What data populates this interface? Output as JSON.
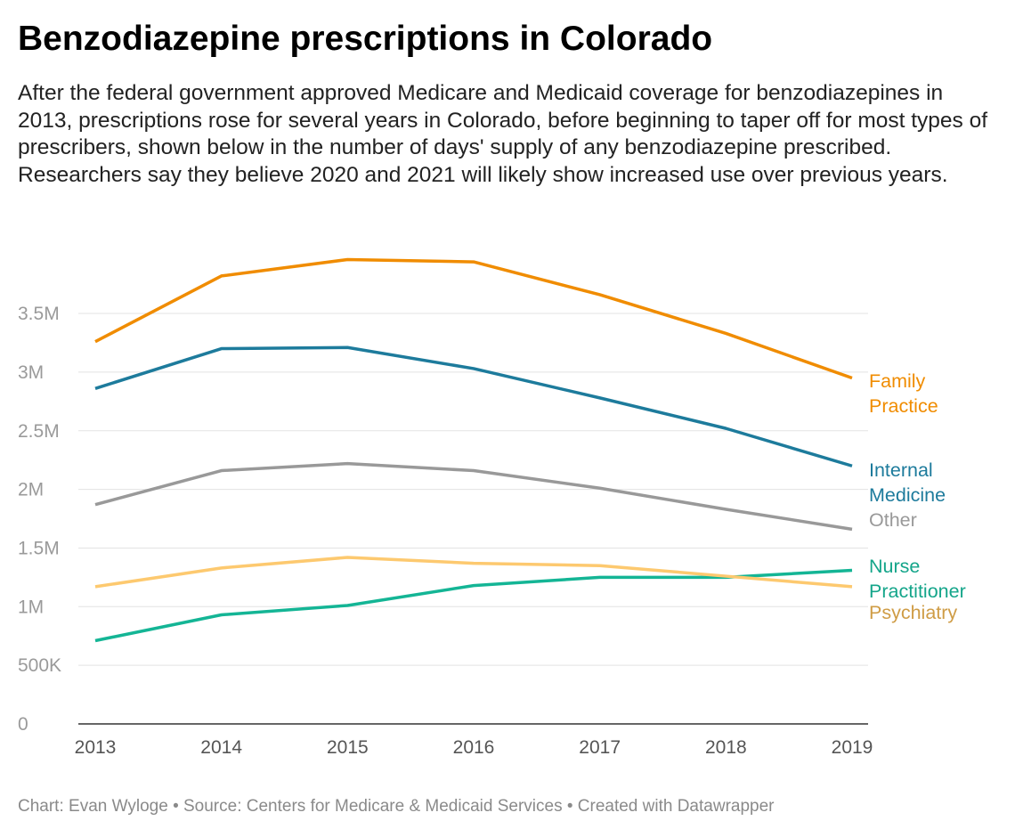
{
  "title": "Benzodiazepine prescriptions in Colorado",
  "subtitle": "After the federal government approved Medicare and Medicaid coverage for benzodiazepines in 2013, prescriptions rose for several years in Colorado, before beginning to taper off for most types of prescribers, shown below in the number of days' supply of any benzodiazepine prescribed. Researchers say they believe 2020 and 2021 will likely show increased use over previous years.",
  "footer": "Chart: Evan Wyloge • Source: Centers for Medicare & Medicaid Services • Created with Datawrapper",
  "chart_data": {
    "type": "line",
    "x": [
      2013,
      2014,
      2015,
      2016,
      2017,
      2018,
      2019
    ],
    "x_tick_labels": [
      "2013",
      "2014",
      "2015",
      "2016",
      "2017",
      "2018",
      "2019"
    ],
    "ylim": [
      0,
      4000000
    ],
    "y_ticks": [
      0,
      500000,
      1000000,
      1500000,
      2000000,
      2500000,
      3000000,
      3500000
    ],
    "y_tick_labels": [
      "0",
      "500K",
      "1M",
      "1.5M",
      "2M",
      "2.5M",
      "3M",
      "3.5M"
    ],
    "grid": true,
    "legend": "direct labels at line ends (right)",
    "series": [
      {
        "name": "Family Practice",
        "label_lines": [
          "Family",
          "Practice"
        ],
        "color": "#f08c00",
        "label_color": "#f08c00",
        "values": [
          3260000,
          3820000,
          3960000,
          3940000,
          3660000,
          3330000,
          2950000
        ]
      },
      {
        "name": "Internal Medicine",
        "label_lines": [
          "Internal",
          "Medicine"
        ],
        "color": "#1d7b9c",
        "label_color": "#1d7b9c",
        "values": [
          2860000,
          3200000,
          3210000,
          3030000,
          2780000,
          2520000,
          2200000
        ]
      },
      {
        "name": "Other",
        "label_lines": [
          "Other"
        ],
        "color": "#999999",
        "label_color": "#999999",
        "values": [
          1870000,
          2160000,
          2220000,
          2160000,
          2010000,
          1830000,
          1660000
        ]
      },
      {
        "name": "Nurse Practitioner",
        "label_lines": [
          "Nurse",
          "Practitioner"
        ],
        "color": "#14b595",
        "label_color": "#14a58a",
        "values": [
          710000,
          930000,
          1010000,
          1180000,
          1250000,
          1250000,
          1310000
        ]
      },
      {
        "name": "Psychiatry",
        "label_lines": [
          "Psychiatry"
        ],
        "color": "#fdc96f",
        "label_color": "#cf9c45",
        "values": [
          1170000,
          1330000,
          1420000,
          1370000,
          1350000,
          1260000,
          1170000
        ]
      }
    ]
  }
}
